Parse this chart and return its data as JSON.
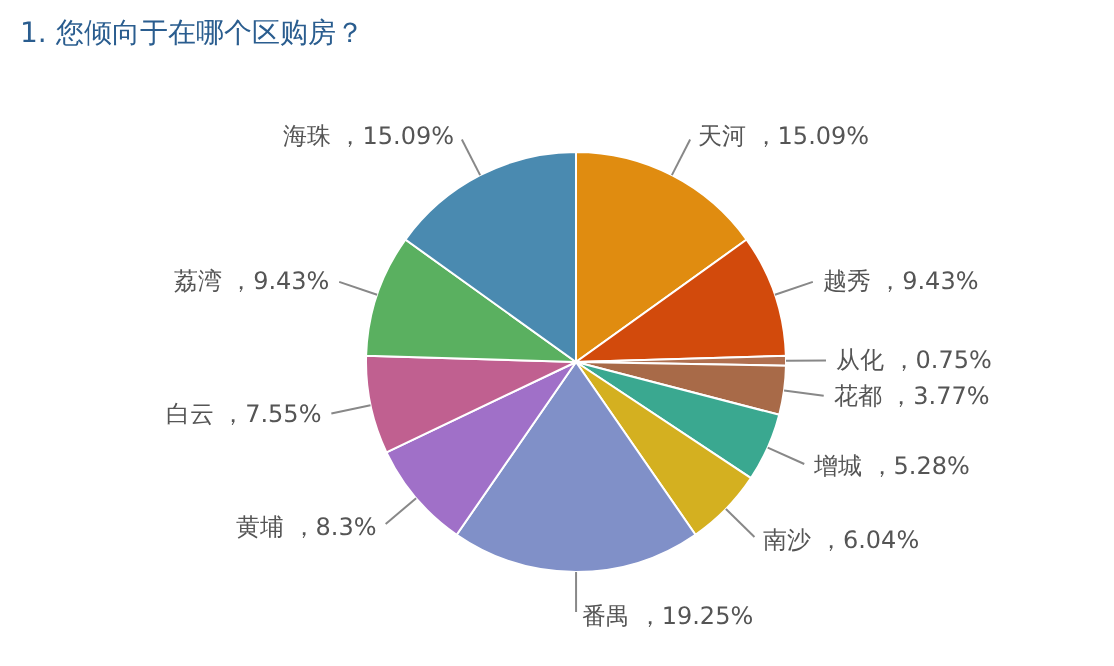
{
  "chart_data": {
    "type": "pie",
    "title": "1. 您倾向于在哪个区购房？",
    "categories": [
      "天河",
      "越秀",
      "从化",
      "花都",
      "增城",
      "南沙",
      "番禺",
      "黄埔",
      "白云",
      "荔湾",
      "海珠"
    ],
    "values": [
      15.09,
      9.43,
      0.75,
      3.77,
      5.28,
      6.04,
      19.25,
      8.3,
      7.55,
      9.43,
      15.09
    ],
    "value_labels": [
      "15.09%",
      "9.43%",
      "0.75%",
      "3.77%",
      "5.28%",
      "6.04%",
      "19.25%",
      "8.3%",
      "7.55%",
      "9.43%",
      "15.09%"
    ],
    "colors": [
      "#e08c10",
      "#d24a0c",
      "#b07050",
      "#a86a48",
      "#3aa890",
      "#d4b020",
      "#8090c8",
      "#a070c8",
      "#c06090",
      "#5ab060",
      "#4a8ab0"
    ],
    "legend": false
  }
}
